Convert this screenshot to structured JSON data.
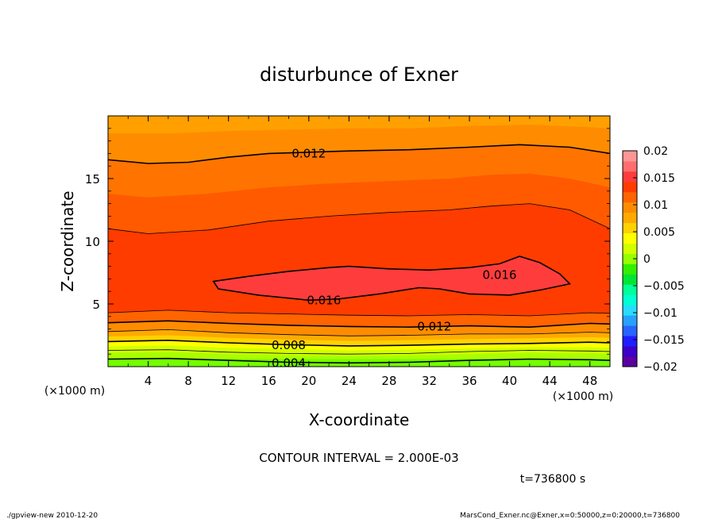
{
  "chart_data": {
    "type": "heatmap",
    "title": "disturbunce of Exner",
    "xlabel": "X-coordinate",
    "ylabel": "Z-coordinate",
    "x_unit": "(×1000 m)",
    "y_unit": "(×1000 m)",
    "xlim": [
      0,
      50
    ],
    "ylim": [
      0,
      20
    ],
    "x_ticks": [
      4,
      8,
      12,
      16,
      20,
      24,
      28,
      32,
      36,
      40,
      44,
      48
    ],
    "y_ticks": [
      5,
      10,
      15
    ],
    "contour_interval_text": "CONTOUR INTERVAL = 2.000E-03",
    "time_text": "t=736800 s",
    "footer_left": "./gpview-new  2010-12-20",
    "footer_right": "MarsCond_Exner.nc@Exner,x=0:50000,z=0:20000,t=736800",
    "contour_labels": [
      {
        "text": "0.012",
        "x": 20,
        "z": 17.0
      },
      {
        "text": "0.016",
        "x": 39,
        "z": 7.3
      },
      {
        "text": "0.016",
        "x": 21.5,
        "z": 5.3
      },
      {
        "text": "0.012",
        "x": 32.5,
        "z": 3.2
      },
      {
        "text": "0.008",
        "x": 18,
        "z": 1.7
      },
      {
        "text": "0.004",
        "x": 18,
        "z": 0.3
      }
    ],
    "contour_lines": [
      {
        "level": 0.004,
        "points": [
          [
            0,
            0.6
          ],
          [
            6,
            0.65
          ],
          [
            12,
            0.5
          ],
          [
            18,
            0.35
          ],
          [
            24,
            0.3
          ],
          [
            30,
            0.35
          ],
          [
            36,
            0.5
          ],
          [
            42,
            0.6
          ],
          [
            48,
            0.55
          ],
          [
            50,
            0.5
          ]
        ]
      },
      {
        "level": 0.006,
        "points": [
          [
            0,
            1.3
          ],
          [
            6,
            1.35
          ],
          [
            12,
            1.15
          ],
          [
            18,
            1.05
          ],
          [
            24,
            1.0
          ],
          [
            30,
            1.05
          ],
          [
            36,
            1.2
          ],
          [
            42,
            1.3
          ],
          [
            48,
            1.25
          ],
          [
            50,
            1.2
          ]
        ]
      },
      {
        "level": 0.008,
        "points": [
          [
            0,
            2.0
          ],
          [
            6,
            2.1
          ],
          [
            12,
            1.9
          ],
          [
            18,
            1.75
          ],
          [
            24,
            1.65
          ],
          [
            30,
            1.7
          ],
          [
            36,
            1.8
          ],
          [
            42,
            1.85
          ],
          [
            48,
            1.95
          ],
          [
            50,
            1.9
          ]
        ]
      },
      {
        "level": 0.01,
        "points": [
          [
            0,
            2.8
          ],
          [
            6,
            2.95
          ],
          [
            12,
            2.7
          ],
          [
            18,
            2.55
          ],
          [
            24,
            2.45
          ],
          [
            30,
            2.5
          ],
          [
            36,
            2.6
          ],
          [
            42,
            2.6
          ],
          [
            48,
            2.75
          ],
          [
            50,
            2.7
          ]
        ]
      },
      {
        "level": 0.012,
        "points": [
          [
            0,
            3.5
          ],
          [
            6,
            3.65
          ],
          [
            12,
            3.45
          ],
          [
            18,
            3.3
          ],
          [
            24,
            3.2
          ],
          [
            30,
            3.15
          ],
          [
            36,
            3.25
          ],
          [
            42,
            3.15
          ],
          [
            48,
            3.45
          ],
          [
            50,
            3.4
          ]
        ]
      },
      {
        "level": 0.014,
        "points": [
          [
            0,
            4.3
          ],
          [
            6,
            4.5
          ],
          [
            12,
            4.3
          ],
          [
            18,
            4.2
          ],
          [
            24,
            4.1
          ],
          [
            30,
            4.05
          ],
          [
            36,
            4.15
          ],
          [
            42,
            4.05
          ],
          [
            48,
            4.3
          ],
          [
            50,
            4.25
          ]
        ]
      },
      {
        "level": 0.014,
        "points": [
          [
            0,
            11.0
          ],
          [
            4,
            10.6
          ],
          [
            10,
            10.9
          ],
          [
            16,
            11.6
          ],
          [
            22,
            12.0
          ],
          [
            28,
            12.3
          ],
          [
            34,
            12.5
          ],
          [
            38,
            12.8
          ],
          [
            42,
            13.0
          ],
          [
            46,
            12.5
          ],
          [
            50,
            11.0
          ]
        ]
      },
      {
        "level": 0.012,
        "points": [
          [
            0,
            16.5
          ],
          [
            4,
            16.2
          ],
          [
            8,
            16.3
          ],
          [
            12,
            16.7
          ],
          [
            16,
            17.0
          ],
          [
            20,
            17.1
          ],
          [
            24,
            17.2
          ],
          [
            30,
            17.3
          ],
          [
            36,
            17.5
          ],
          [
            41,
            17.7
          ],
          [
            46,
            17.5
          ],
          [
            50,
            17.0
          ]
        ]
      }
    ],
    "contour_closed": [
      {
        "level": 0.016,
        "points": [
          [
            10.5,
            6.8
          ],
          [
            14,
            7.2
          ],
          [
            18,
            7.6
          ],
          [
            22,
            7.9
          ],
          [
            24,
            8.0
          ],
          [
            28,
            7.8
          ],
          [
            32,
            7.7
          ],
          [
            36,
            7.9
          ],
          [
            39,
            8.2
          ],
          [
            41,
            8.8
          ],
          [
            43,
            8.3
          ],
          [
            45,
            7.4
          ],
          [
            46,
            6.6
          ],
          [
            43,
            6.1
          ],
          [
            40,
            5.7
          ],
          [
            36,
            5.8
          ],
          [
            33,
            6.2
          ],
          [
            31,
            6.3
          ],
          [
            27,
            5.8
          ],
          [
            23,
            5.4
          ],
          [
            20,
            5.3
          ],
          [
            15,
            5.7
          ],
          [
            11,
            6.2
          ]
        ]
      }
    ],
    "fill_bands": [
      {
        "color": "#a8ff00",
        "top": [
          [
            0,
            1.1
          ],
          [
            6,
            1.15
          ],
          [
            12,
            1.0
          ],
          [
            18,
            0.9
          ],
          [
            24,
            0.85
          ],
          [
            30,
            0.9
          ],
          [
            36,
            1.0
          ],
          [
            42,
            1.1
          ],
          [
            48,
            1.05
          ],
          [
            50,
            1.0
          ]
        ]
      },
      {
        "color": "#d2ff00",
        "top": [
          [
            0,
            1.6
          ],
          [
            6,
            1.7
          ],
          [
            12,
            1.5
          ],
          [
            18,
            1.4
          ],
          [
            24,
            1.3
          ],
          [
            30,
            1.35
          ],
          [
            36,
            1.45
          ],
          [
            42,
            1.55
          ],
          [
            48,
            1.55
          ],
          [
            50,
            1.5
          ]
        ]
      },
      {
        "color": "#ffff00",
        "top": [
          [
            0,
            2.0
          ],
          [
            6,
            2.1
          ],
          [
            12,
            1.9
          ],
          [
            18,
            1.75
          ],
          [
            24,
            1.65
          ],
          [
            30,
            1.7
          ],
          [
            36,
            1.8
          ],
          [
            42,
            1.85
          ],
          [
            48,
            1.95
          ],
          [
            50,
            1.9
          ]
        ]
      },
      {
        "color": "#ffd200",
        "top": [
          [
            0,
            2.4
          ],
          [
            6,
            2.5
          ],
          [
            12,
            2.3
          ],
          [
            18,
            2.15
          ],
          [
            24,
            2.05
          ],
          [
            30,
            2.1
          ],
          [
            36,
            2.2
          ],
          [
            42,
            2.25
          ],
          [
            48,
            2.35
          ],
          [
            50,
            2.3
          ]
        ]
      },
      {
        "color": "#ffaa00",
        "top": [
          [
            0,
            2.8
          ],
          [
            6,
            2.95
          ],
          [
            12,
            2.7
          ],
          [
            18,
            2.55
          ],
          [
            24,
            2.45
          ],
          [
            30,
            2.5
          ],
          [
            36,
            2.6
          ],
          [
            42,
            2.6
          ],
          [
            48,
            2.75
          ],
          [
            50,
            2.7
          ]
        ]
      },
      {
        "color": "#ff8c00",
        "top": [
          [
            0,
            3.5
          ],
          [
            6,
            3.65
          ],
          [
            12,
            3.45
          ],
          [
            18,
            3.3
          ],
          [
            24,
            3.2
          ],
          [
            30,
            3.15
          ],
          [
            36,
            3.25
          ],
          [
            42,
            3.15
          ],
          [
            48,
            3.45
          ],
          [
            50,
            3.4
          ]
        ]
      },
      {
        "color": "#ff6400",
        "top": [
          [
            0,
            4.3
          ],
          [
            6,
            4.5
          ],
          [
            12,
            4.3
          ],
          [
            18,
            4.2
          ],
          [
            24,
            4.1
          ],
          [
            30,
            4.05
          ],
          [
            36,
            4.15
          ],
          [
            42,
            4.05
          ],
          [
            48,
            4.3
          ],
          [
            50,
            4.25
          ]
        ]
      },
      {
        "color": "#ff3c00",
        "top": [
          [
            0,
            11.0
          ],
          [
            4,
            10.6
          ],
          [
            10,
            10.9
          ],
          [
            16,
            11.6
          ],
          [
            22,
            12.0
          ],
          [
            28,
            12.3
          ],
          [
            34,
            12.5
          ],
          [
            38,
            12.8
          ],
          [
            42,
            13.0
          ],
          [
            46,
            12.5
          ],
          [
            50,
            11.0
          ]
        ]
      },
      {
        "color": "#ff5a00",
        "top": [
          [
            0,
            13.8
          ],
          [
            4,
            13.5
          ],
          [
            10,
            13.8
          ],
          [
            16,
            14.3
          ],
          [
            22,
            14.6
          ],
          [
            28,
            14.8
          ],
          [
            34,
            15.0
          ],
          [
            38,
            15.3
          ],
          [
            42,
            15.4
          ],
          [
            46,
            15.0
          ],
          [
            50,
            14.3
          ]
        ]
      },
      {
        "color": "#ff7400",
        "top": [
          [
            0,
            16.5
          ],
          [
            4,
            16.2
          ],
          [
            8,
            16.3
          ],
          [
            12,
            16.7
          ],
          [
            16,
            17.0
          ],
          [
            20,
            17.1
          ],
          [
            24,
            17.2
          ],
          [
            30,
            17.3
          ],
          [
            36,
            17.5
          ],
          [
            41,
            17.7
          ],
          [
            46,
            17.5
          ],
          [
            50,
            17.0
          ]
        ]
      },
      {
        "color": "#ff8c00",
        "top": [
          [
            0,
            18.6
          ],
          [
            6,
            18.6
          ],
          [
            12,
            18.8
          ],
          [
            18,
            18.9
          ],
          [
            24,
            19.0
          ],
          [
            30,
            19.0
          ],
          [
            36,
            19.2
          ],
          [
            42,
            19.3
          ],
          [
            48,
            19.1
          ],
          [
            50,
            19.0
          ]
        ]
      },
      {
        "color": "#ffa000",
        "top": [
          [
            0,
            20
          ],
          [
            50,
            20
          ]
        ]
      }
    ],
    "inner_fill": {
      "color": "#ff3c3c"
    },
    "base_fill_color": "#50ff00",
    "colorbar": {
      "tick_labels": [
        "0.02",
        "0.015",
        "0.01",
        "0.005",
        "0",
        "−0.005",
        "−0.01",
        "−0.015",
        "−0.02"
      ],
      "colors": [
        "#5a00a0",
        "#3c00c8",
        "#1e1eff",
        "#2864ff",
        "#28a0ff",
        "#28dcff",
        "#00ffd2",
        "#00ff96",
        "#00e632",
        "#32f000",
        "#96ff00",
        "#d2ff00",
        "#ffff00",
        "#ffd200",
        "#ffaa00",
        "#ff8c00",
        "#ff6400",
        "#ff3c00",
        "#ff3c3c",
        "#ff6e6e",
        "#ff9696"
      ]
    }
  }
}
